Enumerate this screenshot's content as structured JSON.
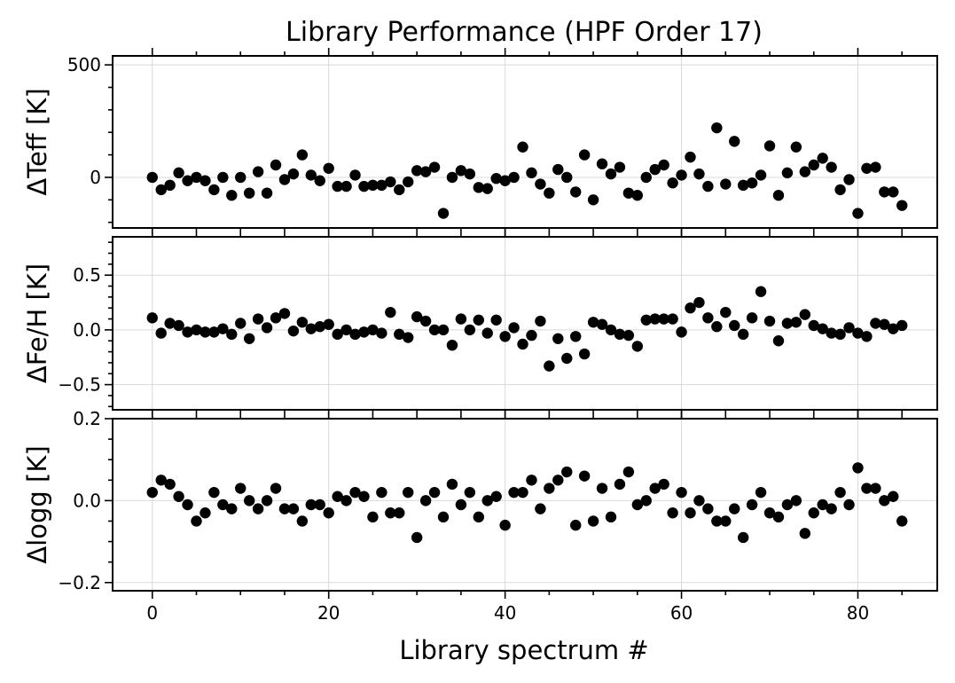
{
  "chart_data": {
    "type": "scatter",
    "title": "Library Performance (HPF Order 17)",
    "xlabel": "Library spectrum #",
    "xlim": [
      -4.5,
      89
    ],
    "xticks": [
      0,
      20,
      40,
      60,
      80
    ],
    "x_minor_step": 5,
    "grid": true,
    "marker_color": "#000000",
    "x": [
      0,
      1,
      2,
      3,
      4,
      5,
      6,
      7,
      8,
      9,
      10,
      11,
      12,
      13,
      14,
      15,
      16,
      17,
      18,
      19,
      20,
      21,
      22,
      23,
      24,
      25,
      26,
      27,
      28,
      29,
      30,
      31,
      32,
      33,
      34,
      35,
      36,
      37,
      38,
      39,
      40,
      41,
      42,
      43,
      44,
      45,
      46,
      47,
      48,
      49,
      50,
      51,
      52,
      53,
      54,
      55,
      56,
      57,
      58,
      59,
      60,
      61,
      62,
      63,
      64,
      65,
      66,
      67,
      68,
      69,
      70,
      71,
      72,
      73,
      74,
      75,
      76,
      77,
      78,
      79,
      80,
      81,
      82,
      83,
      84,
      85
    ],
    "panels": [
      {
        "ylabel": "ΔTeff [K]",
        "ylim": [
          -225,
          540
        ],
        "yticks": [
          0,
          500
        ],
        "ytick_labels": [
          "0",
          "500"
        ],
        "y_minor_step": 100,
        "values": [
          0,
          -55,
          -35,
          20,
          -15,
          0,
          -15,
          -55,
          0,
          -80,
          0,
          -70,
          25,
          -70,
          55,
          -10,
          15,
          100,
          10,
          -15,
          40,
          -40,
          -40,
          10,
          -40,
          -35,
          -35,
          -20,
          -55,
          -20,
          30,
          25,
          45,
          -160,
          0,
          30,
          15,
          -45,
          -50,
          -5,
          -15,
          0,
          135,
          20,
          -30,
          -70,
          35,
          0,
          -65,
          100,
          -100,
          60,
          15,
          45,
          -70,
          -80,
          0,
          35,
          55,
          -25,
          10,
          90,
          15,
          -40,
          220,
          -30,
          160,
          -35,
          -25,
          10,
          140,
          -80,
          20,
          135,
          25,
          55,
          85,
          45,
          -55,
          -10,
          -160,
          40,
          45,
          -65,
          -65,
          -125
        ]
      },
      {
        "ylabel": "ΔFe/H [K]",
        "ylim": [
          -0.73,
          0.85
        ],
        "yticks": [
          -0.5,
          0.0,
          0.5
        ],
        "ytick_labels": [
          "−0.5",
          "0.0",
          "0.5"
        ],
        "y_minor_step": 0.1,
        "values": [
          0.11,
          -0.03,
          0.06,
          0.04,
          -0.02,
          0.0,
          -0.02,
          -0.02,
          0.01,
          -0.04,
          0.06,
          -0.08,
          0.1,
          0.02,
          0.11,
          0.15,
          -0.01,
          0.07,
          0.01,
          0.03,
          0.05,
          -0.04,
          0.0,
          -0.04,
          -0.02,
          0.0,
          -0.03,
          0.16,
          -0.04,
          -0.07,
          0.12,
          0.08,
          0.0,
          0.0,
          -0.14,
          0.1,
          0.0,
          0.09,
          -0.03,
          0.09,
          -0.06,
          0.02,
          -0.13,
          -0.05,
          0.08,
          -0.33,
          -0.08,
          -0.26,
          -0.06,
          -0.22,
          0.07,
          0.05,
          0.0,
          -0.04,
          -0.05,
          -0.15,
          0.09,
          0.1,
          0.1,
          0.1,
          -0.02,
          0.2,
          0.25,
          0.11,
          0.03,
          0.16,
          0.04,
          -0.04,
          0.11,
          0.35,
          0.08,
          -0.1,
          0.06,
          0.07,
          0.14,
          0.04,
          0.01,
          -0.03,
          -0.04,
          0.02,
          -0.03,
          -0.06,
          0.06,
          0.05,
          0.01,
          0.04
        ]
      },
      {
        "ylabel": "Δlogg [K]",
        "ylim": [
          -0.22,
          0.2
        ],
        "yticks": [
          -0.2,
          0.0,
          0.2
        ],
        "ytick_labels": [
          "−0.2",
          "0.0",
          "0.2"
        ],
        "y_minor_step": 0.05,
        "values": [
          0.02,
          0.05,
          0.04,
          0.01,
          -0.01,
          -0.05,
          -0.03,
          0.02,
          -0.01,
          -0.02,
          0.03,
          0.0,
          -0.02,
          0.0,
          0.03,
          -0.02,
          -0.02,
          -0.05,
          -0.01,
          -0.01,
          -0.03,
          0.01,
          0.0,
          0.02,
          0.01,
          -0.04,
          0.02,
          -0.03,
          -0.03,
          0.02,
          -0.09,
          0.0,
          0.02,
          -0.04,
          0.04,
          -0.01,
          0.02,
          -0.04,
          0.0,
          0.01,
          -0.06,
          0.02,
          0.02,
          0.05,
          -0.02,
          0.03,
          0.05,
          0.07,
          -0.06,
          0.06,
          -0.05,
          0.03,
          -0.04,
          0.04,
          0.07,
          -0.01,
          0.0,
          0.03,
          0.04,
          -0.03,
          0.02,
          -0.03,
          0.0,
          -0.02,
          -0.05,
          -0.05,
          -0.02,
          -0.09,
          -0.01,
          0.02,
          -0.03,
          -0.04,
          -0.01,
          0.0,
          -0.08,
          -0.03,
          -0.01,
          -0.02,
          0.02,
          -0.01,
          0.08,
          0.03,
          0.03,
          0.0,
          0.01,
          -0.05
        ]
      }
    ]
  }
}
